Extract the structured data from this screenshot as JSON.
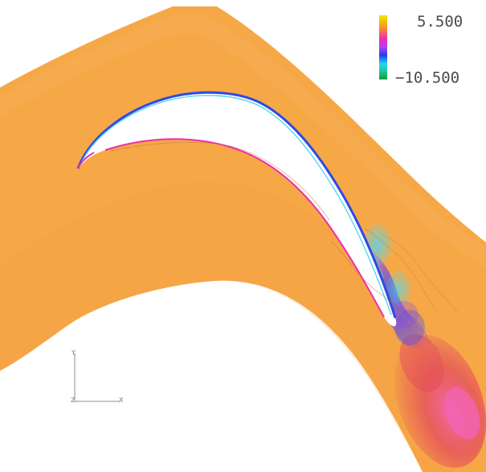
{
  "legend": {
    "max_label": "5.500",
    "min_label": "−10.500",
    "gradient_colors": [
      "#f6e600",
      "#f79a1c",
      "#ef2fa8",
      "#b63cf5",
      "#1f3cf0",
      "#25d7ee",
      "#1ec48e",
      "#0f9a45"
    ]
  },
  "axes": {
    "y_label": "Y",
    "z_label": "Z",
    "x_label": "X"
  },
  "colors": {
    "background": "#ffffff",
    "field_base": "#f6a847",
    "field_light": "#f7b25a",
    "field_dark": "#ef8f3c",
    "wake_red": "#e44a5c",
    "wake_pink": "#f364b6",
    "low_cyan": "#57d6ee",
    "low_blue": "#3f4ee8",
    "low_violet": "#8a49e6",
    "contour_line": "#bc7b45"
  }
}
